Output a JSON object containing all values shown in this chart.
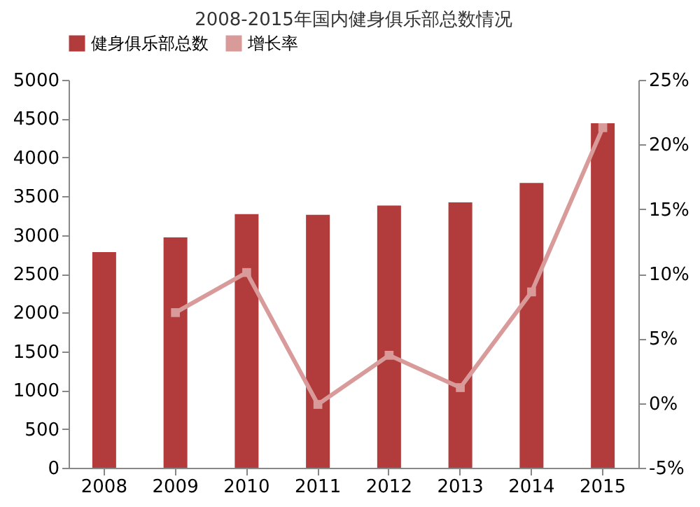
{
  "chart_data": {
    "type": "bar",
    "title": "2008-2015年国内健身俱乐部总数情况",
    "categories": [
      "2008",
      "2009",
      "2010",
      "2011",
      "2012",
      "2013",
      "2014",
      "2015"
    ],
    "series": [
      {
        "name": "健身俱乐部总数",
        "color": "#b23b3b",
        "values": [
          2780,
          2970,
          3270,
          3260,
          3380,
          3420,
          3670,
          4440
        ]
      },
      {
        "name": "增长率",
        "type": "line",
        "axis": "y2",
        "color": "#d99a9a",
        "marker": "square",
        "values": [
          null,
          7.0,
          10.1,
          -0.1,
          3.7,
          1.2,
          8.6,
          21.3
        ]
      }
    ],
    "ylim": [
      0,
      5000
    ],
    "yticks": [
      0,
      500,
      1000,
      1500,
      2000,
      2500,
      3000,
      3500,
      4000,
      4500,
      5000
    ],
    "y2lim": [
      -5,
      25
    ],
    "y2ticks": [
      {
        "value": -5,
        "label": "-5%"
      },
      {
        "value": 0,
        "label": "0%"
      },
      {
        "value": 5,
        "label": "5%"
      },
      {
        "value": 10,
        "label": "10%"
      },
      {
        "value": 15,
        "label": "15%"
      },
      {
        "value": 20,
        "label": "20%"
      },
      {
        "value": 25,
        "label": "25%"
      }
    ],
    "legend": "top",
    "grid": false
  }
}
